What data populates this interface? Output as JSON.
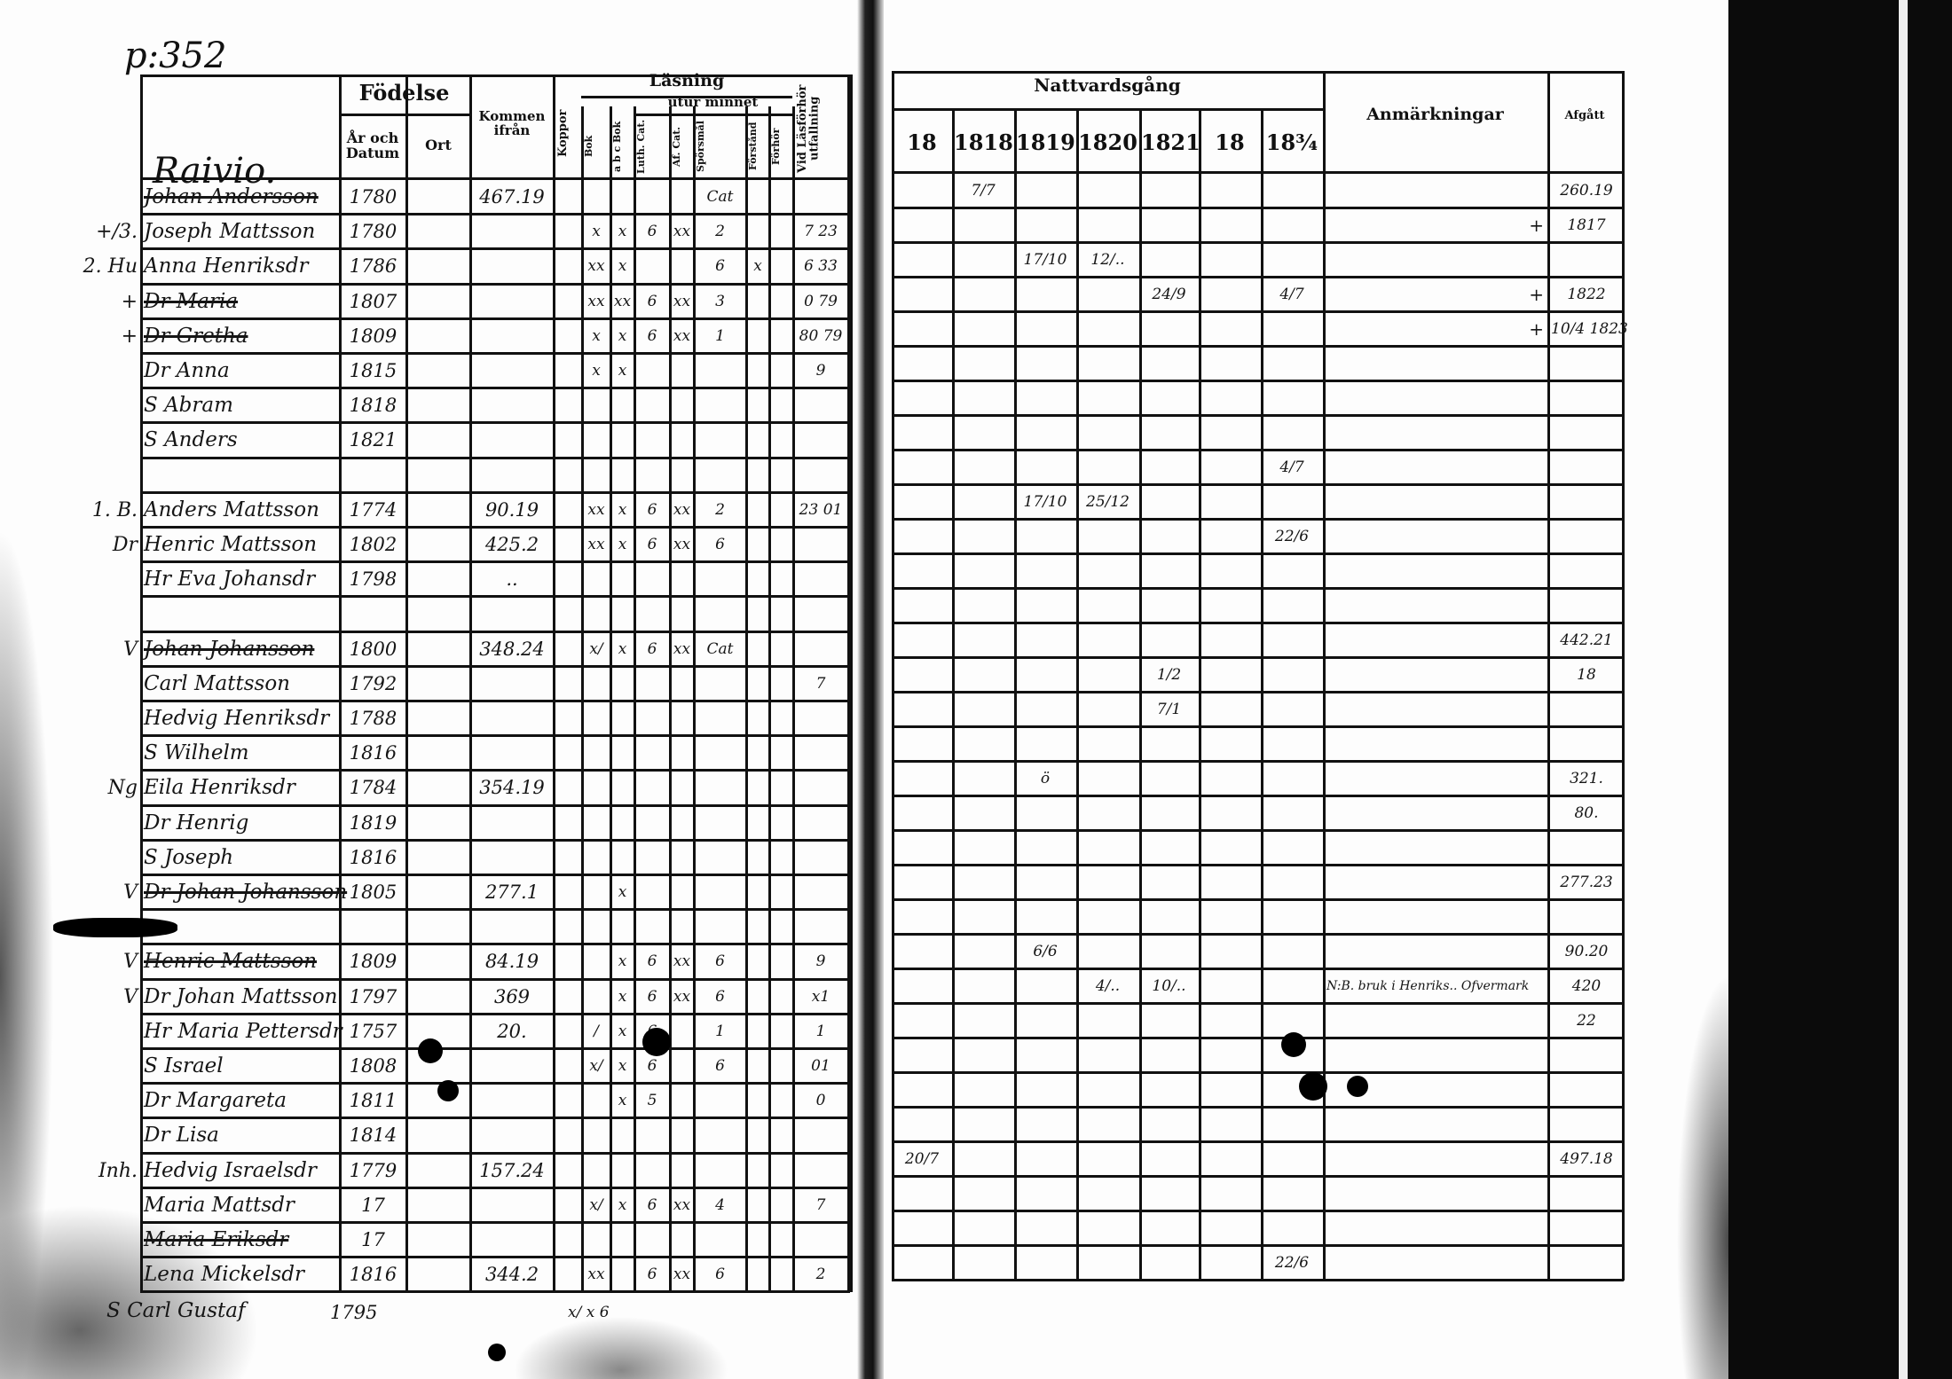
{
  "page_label": "p:352",
  "village": "Raivio.",
  "left_table": {
    "headers": {
      "fodelse": "Födelse",
      "ar_och_datum": "År och Datum",
      "ort": "Ort",
      "kommen_ifran": "Kommen ifrån",
      "koppor": "Koppor",
      "lasning": "Läsning",
      "utur_minnet": "utur minnet",
      "bok": "Bok",
      "abc_bok": "a b c Bok",
      "luth_cat": "Luth. Cat.",
      "af_cat": "Af. Cat.",
      "sporsmal": "Spörsmål",
      "forstand": "Förstånd",
      "forhor": "Förhör",
      "vid_lasforhor": "Vid Läsförhör utfallning"
    },
    "rows": [
      {
        "margin": "",
        "name": "Johan Andersson",
        "struck": true,
        "date": "1780",
        "ort": "",
        "kommen": "467.19",
        "koppor": "",
        "bok": "",
        "abc": "",
        "luth": "",
        "af": "",
        "spors": "Cat",
        "c1": "",
        "forhor": "",
        "vid": ""
      },
      {
        "margin": "+/3.",
        "name": "Joseph Mattsson",
        "struck": false,
        "date": "1780",
        "ort": "",
        "kommen": "",
        "koppor": "",
        "bok": "x",
        "abc": "x",
        "luth": "6",
        "af": "xx",
        "spors": "2",
        "c1": "",
        "forhor": "",
        "vid": "7 23"
      },
      {
        "margin": "2. Hu",
        "name": "Anna Henriksdr",
        "struck": false,
        "date": "1786",
        "ort": "",
        "kommen": "",
        "koppor": "",
        "bok": "xx",
        "abc": "x",
        "luth": "",
        "af": "",
        "spors": "6",
        "c1": "x",
        "forhor": "",
        "vid": "6 33"
      },
      {
        "margin": "+",
        "name": "Dr Maria",
        "struck": true,
        "date": "1807",
        "ort": "",
        "kommen": "",
        "koppor": "",
        "bok": "xx",
        "abc": "xx",
        "luth": "6",
        "af": "xx",
        "spors": "3",
        "c1": "",
        "forhor": "",
        "vid": "0 79"
      },
      {
        "margin": "+",
        "name": "Dr Gretha",
        "struck": true,
        "date": "1809",
        "ort": "",
        "kommen": "",
        "koppor": "",
        "bok": "x",
        "abc": "x",
        "luth": "6",
        "af": "xx",
        "spors": "1",
        "c1": "",
        "forhor": "",
        "vid": "80 79"
      },
      {
        "margin": "",
        "name": "Dr Anna",
        "struck": false,
        "date": "1815",
        "ort": "",
        "kommen": "",
        "koppor": "",
        "bok": "x",
        "abc": "x",
        "luth": "",
        "af": "",
        "spors": "",
        "c1": "",
        "forhor": "",
        "vid": "9"
      },
      {
        "margin": "",
        "name": "S Abram",
        "struck": false,
        "date": "1818",
        "ort": "",
        "kommen": "",
        "koppor": "",
        "bok": "",
        "abc": "",
        "luth": "",
        "af": "",
        "spors": "",
        "c1": "",
        "forhor": "",
        "vid": ""
      },
      {
        "margin": "",
        "name": "S Anders",
        "struck": false,
        "date": "1821",
        "ort": "",
        "kommen": "",
        "koppor": "",
        "bok": "",
        "abc": "",
        "luth": "",
        "af": "",
        "spors": "",
        "c1": "",
        "forhor": "",
        "vid": ""
      },
      {
        "margin": "",
        "name": "",
        "struck": false,
        "date": "",
        "ort": "",
        "kommen": "",
        "koppor": "",
        "bok": "",
        "abc": "",
        "luth": "",
        "af": "",
        "spors": "",
        "c1": "",
        "forhor": "",
        "vid": ""
      },
      {
        "margin": "1. B.",
        "name": "Anders Mattsson",
        "struck": false,
        "date": "1774",
        "ort": "",
        "kommen": "90.19",
        "koppor": "",
        "bok": "xx",
        "abc": "x",
        "luth": "6",
        "af": "xx",
        "spors": "2",
        "c1": "",
        "forhor": "",
        "vid": "23 01"
      },
      {
        "margin": "Dr",
        "name": "Henric Mattsson",
        "struck": false,
        "date": "1802",
        "ort": "",
        "kommen": "425.2",
        "koppor": "",
        "bok": "xx",
        "abc": "x",
        "luth": "6",
        "af": "xx",
        "spors": "6",
        "c1": "",
        "forhor": "",
        "vid": ""
      },
      {
        "margin": "",
        "name": "Hr Eva Johansdr",
        "struck": false,
        "date": "1798",
        "ort": "",
        "kommen": "..",
        "koppor": "",
        "bok": "",
        "abc": "",
        "luth": "",
        "af": "",
        "spors": "",
        "c1": "",
        "forhor": "",
        "vid": ""
      },
      {
        "margin": "",
        "name": "",
        "struck": false,
        "date": "",
        "ort": "",
        "kommen": "",
        "koppor": "",
        "bok": "",
        "abc": "",
        "luth": "",
        "af": "",
        "spors": "",
        "c1": "",
        "forhor": "",
        "vid": ""
      },
      {
        "margin": "V",
        "name": "Johan Johansson",
        "struck": true,
        "date": "1800",
        "ort": "",
        "kommen": "348.24",
        "koppor": "",
        "bok": "x/",
        "abc": "x",
        "luth": "6",
        "af": "xx",
        "spors": "Cat",
        "c1": "",
        "forhor": "",
        "vid": ""
      },
      {
        "margin": "",
        "name": "Carl Mattsson",
        "struck": false,
        "date": "1792",
        "ort": "",
        "kommen": "",
        "koppor": "",
        "bok": "",
        "abc": "",
        "luth": "",
        "af": "",
        "spors": "",
        "c1": "",
        "forhor": "",
        "vid": "7"
      },
      {
        "margin": "",
        "name": "Hedvig Henriksdr",
        "struck": false,
        "date": "1788",
        "ort": "",
        "kommen": "",
        "koppor": "",
        "bok": "",
        "abc": "",
        "luth": "",
        "af": "",
        "spors": "",
        "c1": "",
        "forhor": "",
        "vid": ""
      },
      {
        "margin": "",
        "name": "S Wilhelm",
        "struck": false,
        "date": "1816",
        "ort": "",
        "kommen": "",
        "koppor": "",
        "bok": "",
        "abc": "",
        "luth": "",
        "af": "",
        "spors": "",
        "c1": "",
        "forhor": "",
        "vid": ""
      },
      {
        "margin": "Ng",
        "name": "Eila Henriksdr",
        "struck": false,
        "date": "1784",
        "ort": "",
        "kommen": "354.19",
        "koppor": "",
        "bok": "",
        "abc": "",
        "luth": "",
        "af": "",
        "spors": "",
        "c1": "",
        "forhor": "",
        "vid": ""
      },
      {
        "margin": "",
        "name": "Dr Henrig",
        "struck": false,
        "date": "1819",
        "ort": "",
        "kommen": "",
        "koppor": "",
        "bok": "",
        "abc": "",
        "luth": "",
        "af": "",
        "spors": "",
        "c1": "",
        "forhor": "",
        "vid": ""
      },
      {
        "margin": "",
        "name": "S Joseph",
        "struck": false,
        "date": "1816",
        "ort": "",
        "kommen": "",
        "koppor": "",
        "bok": "",
        "abc": "",
        "luth": "",
        "af": "",
        "spors": "",
        "c1": "",
        "forhor": "",
        "vid": ""
      },
      {
        "margin": "V",
        "name": "Dr Johan Johansson",
        "struck": true,
        "date": "1805",
        "ort": "",
        "kommen": "277.1",
        "koppor": "",
        "bok": "",
        "abc": "x",
        "luth": "",
        "af": "",
        "spors": "",
        "c1": "",
        "forhor": "",
        "vid": ""
      },
      {
        "margin": "",
        "name": "",
        "struck": false,
        "date": "",
        "ort": "",
        "kommen": "",
        "koppor": "",
        "bok": "",
        "abc": "",
        "luth": "",
        "af": "",
        "spors": "",
        "c1": "",
        "forhor": "",
        "vid": ""
      },
      {
        "margin": "V",
        "name": "Henric Mattsson",
        "struck": true,
        "date": "1809",
        "ort": "",
        "kommen": "84.19",
        "koppor": "",
        "bok": "",
        "abc": "x",
        "luth": "6",
        "af": "xx",
        "spors": "6",
        "c1": "",
        "forhor": "",
        "vid": "9"
      },
      {
        "margin": "V",
        "name": "Dr Johan Mattsson",
        "struck": false,
        "date": "1797",
        "ort": "",
        "kommen": "369",
        "koppor": "",
        "bok": "",
        "abc": "x",
        "luth": "6",
        "af": "xx",
        "spors": "6",
        "c1": "",
        "forhor": "",
        "vid": "x1"
      },
      {
        "margin": "",
        "name": "Hr Maria Pettersdr",
        "struck": false,
        "date": "1757",
        "ort": "",
        "kommen": "20.",
        "koppor": "",
        "bok": "/",
        "abc": "x",
        "luth": "6",
        "af": "",
        "spors": "1",
        "c1": "",
        "forhor": "",
        "vid": "1"
      },
      {
        "margin": "",
        "name": "S Israel",
        "struck": false,
        "date": "1808",
        "ort": "",
        "kommen": "",
        "koppor": "",
        "bok": "x/",
        "abc": "x",
        "luth": "6",
        "af": "",
        "spors": "6",
        "c1": "",
        "forhor": "",
        "vid": "01"
      },
      {
        "margin": "",
        "name": "Dr Margareta",
        "struck": false,
        "date": "1811",
        "ort": "",
        "kommen": "",
        "koppor": "",
        "bok": "",
        "abc": "x",
        "luth": "5",
        "af": "",
        "spors": "",
        "c1": "",
        "forhor": "",
        "vid": "0"
      },
      {
        "margin": "",
        "name": "Dr Lisa",
        "struck": false,
        "date": "1814",
        "ort": "",
        "kommen": "",
        "koppor": "",
        "bok": "",
        "abc": "",
        "luth": "",
        "af": "",
        "spors": "",
        "c1": "",
        "forhor": "",
        "vid": ""
      },
      {
        "margin": "Inh.",
        "name": "Hedvig Israelsdr",
        "struck": false,
        "date": "1779",
        "ort": "",
        "kommen": "157.24",
        "koppor": "",
        "bok": "",
        "abc": "",
        "luth": "",
        "af": "",
        "spors": "",
        "c1": "",
        "forhor": "",
        "vid": ""
      },
      {
        "margin": "",
        "name": "Maria Mattsdr",
        "struck": false,
        "date": "17",
        "ort": "",
        "kommen": "",
        "koppor": "",
        "bok": "x/",
        "abc": "x",
        "luth": "6",
        "af": "xx",
        "spors": "4",
        "c1": "",
        "forhor": "",
        "vid": "7"
      },
      {
        "margin": "",
        "name": "Maria Eriksdr",
        "struck": true,
        "date": "17",
        "ort": "",
        "kommen": "",
        "koppor": "",
        "bok": "",
        "abc": "",
        "luth": "",
        "af": "",
        "spors": "",
        "c1": "",
        "forhor": "",
        "vid": ""
      },
      {
        "margin": "",
        "name": "Lena Mickelsdr",
        "struck": false,
        "date": "1816",
        "ort": "",
        "kommen": "344.2",
        "koppor": "",
        "bok": "xx",
        "abc": "",
        "luth": "6",
        "af": "xx",
        "spors": "6",
        "c1": "",
        "forhor": "",
        "vid": "2"
      }
    ],
    "below_table": {
      "name": "S Carl Gustaf",
      "date": "1795",
      "marks": "x/ x 6"
    }
  },
  "right_table": {
    "headers": {
      "nattvardsgang": "Nattvardsgång",
      "years": [
        "18",
        "1818",
        "1819",
        "1820",
        "1821",
        "18",
        "18¾"
      ],
      "anmarkningar": "Anmärkningar",
      "afgatt": "Afgått"
    },
    "rows": [
      {
        "y": [
          "",
          "7/7",
          "",
          "",
          "",
          "",
          ""
        ],
        "anm": "",
        "afgatt": "260.19"
      },
      {
        "y": [
          "",
          "",
          "",
          "",
          "",
          "",
          ""
        ],
        "anm": "+",
        "afgatt": "1817"
      },
      {
        "y": [
          "",
          "",
          "17/10",
          "12/..",
          "",
          "",
          ""
        ],
        "anm": "",
        "afgatt": ""
      },
      {
        "y": [
          "",
          "",
          "",
          "",
          "24/9",
          "",
          "4/7"
        ],
        "anm": "+",
        "afgatt": "1822"
      },
      {
        "y": [
          "",
          "",
          "",
          "",
          "",
          "",
          ""
        ],
        "anm": "+",
        "afgatt": "10/4 1823"
      },
      {
        "y": [
          "",
          "",
          "",
          "",
          "",
          "",
          ""
        ],
        "anm": "",
        "afgatt": ""
      },
      {
        "y": [
          "",
          "",
          "",
          "",
          "",
          "",
          ""
        ],
        "anm": "",
        "afgatt": ""
      },
      {
        "y": [
          "",
          "",
          "",
          "",
          "",
          "",
          ""
        ],
        "anm": "",
        "afgatt": ""
      },
      {
        "y": [
          "",
          "",
          "",
          "",
          "",
          "",
          "4/7"
        ],
        "anm": "",
        "afgatt": ""
      },
      {
        "y": [
          "",
          "",
          "17/10",
          "25/12",
          "",
          "",
          ""
        ],
        "anm": "",
        "afgatt": ""
      },
      {
        "y": [
          "",
          "",
          "",
          "",
          "",
          "",
          "22/6"
        ],
        "anm": "",
        "afgatt": ""
      },
      {
        "y": [
          "",
          "",
          "",
          "",
          "",
          "",
          ""
        ],
        "anm": "",
        "afgatt": ""
      },
      {
        "y": [
          "",
          "",
          "",
          "",
          "",
          "",
          ""
        ],
        "anm": "",
        "afgatt": ""
      },
      {
        "y": [
          "",
          "",
          "",
          "",
          "",
          "",
          ""
        ],
        "anm": "",
        "afgatt": "442.21"
      },
      {
        "y": [
          "",
          "",
          "",
          "",
          "1/2",
          "",
          ""
        ],
        "anm": "",
        "afgatt": "18"
      },
      {
        "y": [
          "",
          "",
          "",
          "",
          "7/1",
          "",
          ""
        ],
        "anm": "",
        "afgatt": ""
      },
      {
        "y": [
          "",
          "",
          "",
          "",
          "",
          "",
          ""
        ],
        "anm": "",
        "afgatt": ""
      },
      {
        "y": [
          "",
          "",
          "ö",
          "",
          "",
          "",
          ""
        ],
        "anm": "",
        "afgatt": "321."
      },
      {
        "y": [
          "",
          "",
          "",
          "",
          "",
          "",
          ""
        ],
        "anm": "",
        "afgatt": "80."
      },
      {
        "y": [
          "",
          "",
          "",
          "",
          "",
          "",
          ""
        ],
        "anm": "",
        "afgatt": ""
      },
      {
        "y": [
          "",
          "",
          "",
          "",
          "",
          "",
          ""
        ],
        "anm": "",
        "afgatt": "277.23"
      },
      {
        "y": [
          "",
          "",
          "",
          "",
          "",
          "",
          ""
        ],
        "anm": "",
        "afgatt": ""
      },
      {
        "y": [
          "",
          "",
          "6/6",
          "",
          "",
          "",
          ""
        ],
        "anm": "",
        "afgatt": "90.20"
      },
      {
        "y": [
          "",
          "",
          "",
          "4/..",
          "10/..",
          "",
          ""
        ],
        "anm": "N:B. bruk i Henriks.. Ofvermark",
        "afgatt": "420"
      },
      {
        "y": [
          "",
          "",
          "",
          "",
          "",
          "",
          ""
        ],
        "anm": "",
        "afgatt": "22"
      },
      {
        "y": [
          "",
          "",
          "",
          "",
          "",
          "",
          ""
        ],
        "anm": "",
        "afgatt": ""
      },
      {
        "y": [
          "",
          "",
          "",
          "",
          "",
          "",
          ""
        ],
        "anm": "",
        "afgatt": ""
      },
      {
        "y": [
          "",
          "",
          "",
          "",
          "",
          "",
          ""
        ],
        "anm": "",
        "afgatt": ""
      },
      {
        "y": [
          "20/7",
          "",
          "",
          "",
          "",
          "",
          ""
        ],
        "anm": "",
        "afgatt": "497.18"
      },
      {
        "y": [
          "",
          "",
          "",
          "",
          "",
          "",
          ""
        ],
        "anm": "",
        "afgatt": ""
      },
      {
        "y": [
          "",
          "",
          "",
          "",
          "",
          "",
          ""
        ],
        "anm": "",
        "afgatt": ""
      },
      {
        "y": [
          "",
          "",
          "",
          "",
          "",
          "",
          "22/6"
        ],
        "anm": "",
        "afgatt": ""
      }
    ]
  }
}
